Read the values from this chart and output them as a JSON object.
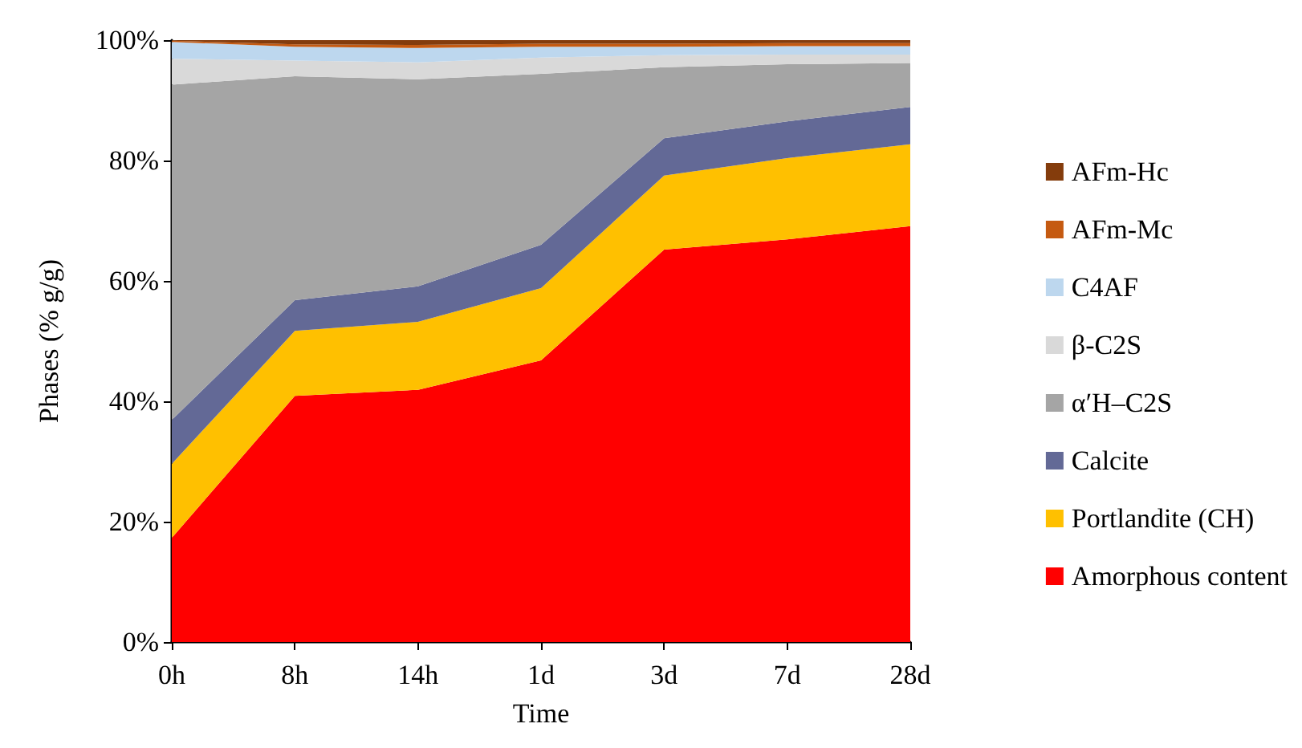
{
  "chart_data": {
    "type": "area",
    "stacked": true,
    "xlabel": "Time",
    "ylabel": "Phases (% g/g)",
    "categories": [
      "0h",
      "8h",
      "14h",
      "1d",
      "3d",
      "7d",
      "28d"
    ],
    "ylim": [
      0,
      100
    ],
    "yticks": [
      {
        "value": 0,
        "label": "0%"
      },
      {
        "value": 20,
        "label": "20%"
      },
      {
        "value": 40,
        "label": "40%"
      },
      {
        "value": 60,
        "label": "60%"
      },
      {
        "value": 80,
        "label": "80%"
      },
      {
        "value": 100,
        "label": "100%"
      }
    ],
    "legend": "right",
    "grid": false,
    "series": [
      {
        "name": "Amorphous content",
        "color": "#ff0000",
        "values": [
          17.3,
          40.9,
          41.9,
          46.8,
          65.2,
          66.9,
          69.1
        ]
      },
      {
        "name": "Portlandite (CH)",
        "color": "#ffc000",
        "values": [
          12.3,
          10.8,
          11.3,
          12.0,
          12.3,
          13.5,
          13.6
        ]
      },
      {
        "name": "Calcite",
        "color": "#636996",
        "values": [
          7.3,
          5.1,
          5.9,
          7.2,
          6.2,
          6.1,
          6.2
        ]
      },
      {
        "name": "α′H–C2S",
        "color": "#a5a5a5",
        "values": [
          55.7,
          37.2,
          34.4,
          28.4,
          11.8,
          9.5,
          7.3
        ]
      },
      {
        "name": "β-C2S",
        "color": "#d9d9d9",
        "values": [
          4.3,
          2.6,
          2.8,
          2.7,
          2.0,
          1.6,
          1.4
        ]
      },
      {
        "name": "C4AF",
        "color": "#bdd7ee",
        "values": [
          2.8,
          2.3,
          2.4,
          1.8,
          1.4,
          1.4,
          1.4
        ]
      },
      {
        "name": "AFm-Mc",
        "color": "#c55a11",
        "values": [
          0.2,
          0.4,
          0.5,
          0.5,
          0.5,
          0.5,
          0.5
        ]
      },
      {
        "name": "AFm-Hc",
        "color": "#843c0c",
        "values": [
          0.1,
          0.7,
          0.8,
          0.7,
          0.6,
          0.5,
          0.5
        ]
      }
    ]
  }
}
